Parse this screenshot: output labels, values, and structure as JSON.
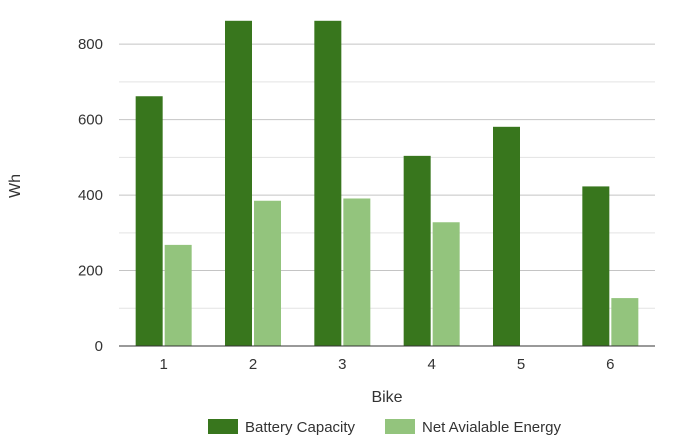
{
  "chart_data": {
    "type": "bar",
    "xlabel": "Bike",
    "ylabel": "Wh",
    "categories": [
      "1",
      "2",
      "3",
      "4",
      "5",
      "6"
    ],
    "series": [
      {
        "name": "Battery Capacity",
        "color": "#38761d",
        "values": [
          662,
          862,
          862,
          504,
          581,
          423
        ]
      },
      {
        "name": "Net Avialable Energy",
        "color": "#93c47d",
        "values": [
          268,
          385,
          391,
          328,
          0,
          127
        ]
      }
    ],
    "ylim": [
      0,
      880
    ],
    "yticks": [
      "0",
      "200",
      "400",
      "600",
      "800"
    ],
    "ytick_values": [
      0,
      200,
      400,
      600,
      800
    ],
    "minor_grid_values": [
      100,
      300,
      500,
      700
    ],
    "grid": true,
    "legend_position": "bottom"
  }
}
